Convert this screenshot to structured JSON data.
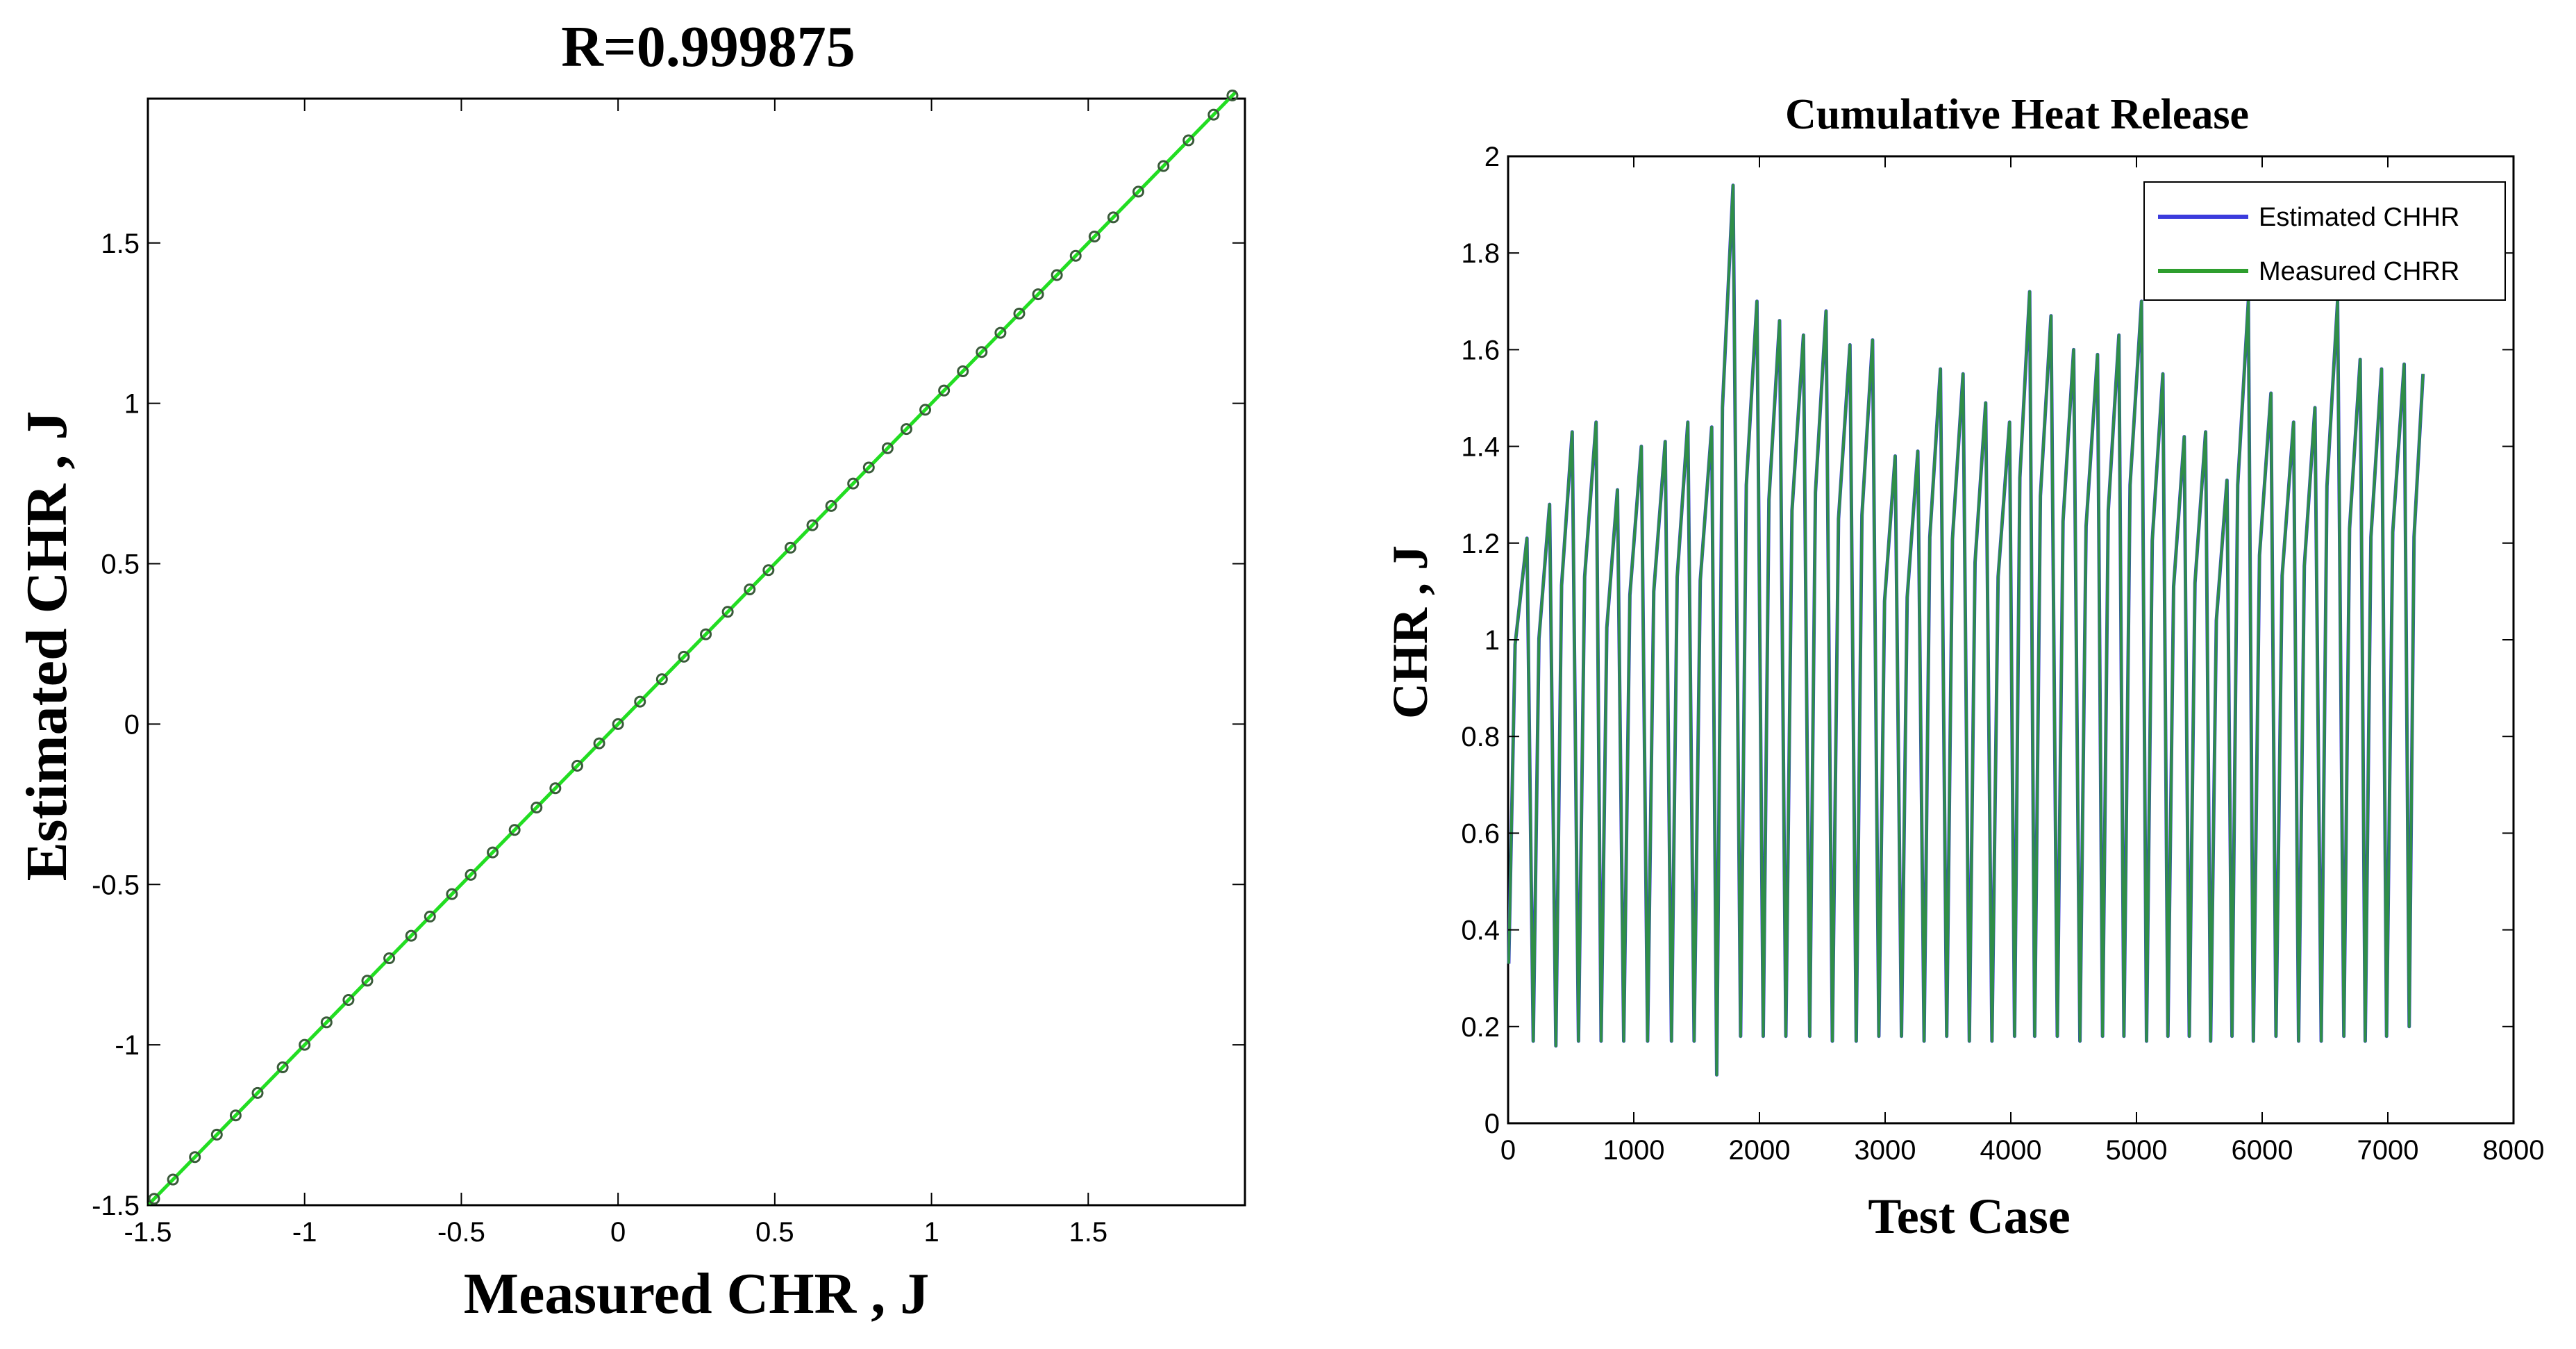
{
  "chart_data": [
    {
      "type": "scatter",
      "title": "R=0.999875",
      "xlabel": "Measured CHR , J",
      "ylabel": "Estimated CHR , J",
      "xlim": [
        -1.5,
        2
      ],
      "ylim": [
        -1.5,
        1.95
      ],
      "xticks": [
        -1.5,
        -1,
        -0.5,
        0,
        0.5,
        1,
        1.5
      ],
      "yticks": [
        -1.5,
        -1,
        -0.5,
        0,
        0.5,
        1,
        1.5
      ],
      "xtick_labels": [
        "-1.5",
        "-1",
        "-0.5",
        "0",
        "0.5",
        "1",
        "1.5"
      ],
      "ytick_labels": [
        "-1.5",
        "-1",
        "-0.5",
        "0",
        "0.5",
        "1",
        "1.5"
      ],
      "grid": false,
      "fit_line": {
        "x": [
          -1.5,
          1.97
        ],
        "y": [
          -1.5,
          1.97
        ],
        "color": "#22dd22"
      },
      "points_color": "#3a5a3a",
      "points": [
        [
          -1.48,
          -1.48
        ],
        [
          -1.42,
          -1.42
        ],
        [
          -1.35,
          -1.35
        ],
        [
          -1.28,
          -1.28
        ],
        [
          -1.22,
          -1.22
        ],
        [
          -1.15,
          -1.15
        ],
        [
          -1.07,
          -1.07
        ],
        [
          -1.0,
          -1.0
        ],
        [
          -0.93,
          -0.93
        ],
        [
          -0.86,
          -0.86
        ],
        [
          -0.8,
          -0.8
        ],
        [
          -0.73,
          -0.73
        ],
        [
          -0.66,
          -0.66
        ],
        [
          -0.6,
          -0.6
        ],
        [
          -0.53,
          -0.53
        ],
        [
          -0.47,
          -0.47
        ],
        [
          -0.4,
          -0.4
        ],
        [
          -0.33,
          -0.33
        ],
        [
          -0.26,
          -0.26
        ],
        [
          -0.2,
          -0.2
        ],
        [
          -0.13,
          -0.13
        ],
        [
          -0.06,
          -0.06
        ],
        [
          0.0,
          0.0
        ],
        [
          0.07,
          0.07
        ],
        [
          0.14,
          0.14
        ],
        [
          0.21,
          0.21
        ],
        [
          0.28,
          0.28
        ],
        [
          0.35,
          0.35
        ],
        [
          0.42,
          0.42
        ],
        [
          0.48,
          0.48
        ],
        [
          0.55,
          0.55
        ],
        [
          0.62,
          0.62
        ],
        [
          0.68,
          0.68
        ],
        [
          0.75,
          0.75
        ],
        [
          0.8,
          0.8
        ],
        [
          0.86,
          0.86
        ],
        [
          0.92,
          0.92
        ],
        [
          0.98,
          0.98
        ],
        [
          1.04,
          1.04
        ],
        [
          1.1,
          1.1
        ],
        [
          1.16,
          1.16
        ],
        [
          1.22,
          1.22
        ],
        [
          1.28,
          1.28
        ],
        [
          1.34,
          1.34
        ],
        [
          1.4,
          1.4
        ],
        [
          1.46,
          1.46
        ],
        [
          1.52,
          1.52
        ],
        [
          1.58,
          1.58
        ],
        [
          1.66,
          1.66
        ],
        [
          1.74,
          1.74
        ],
        [
          1.82,
          1.82
        ],
        [
          1.9,
          1.9
        ],
        [
          1.96,
          1.96
        ]
      ]
    },
    {
      "type": "line",
      "title": "Cumulative Heat Release",
      "xlabel": "Test Case",
      "ylabel": "CHR , J",
      "xlim": [
        0,
        8000
      ],
      "ylim": [
        0,
        2
      ],
      "xticks": [
        0,
        1000,
        2000,
        3000,
        4000,
        5000,
        6000,
        7000,
        8000
      ],
      "yticks": [
        0,
        0.2,
        0.4,
        0.6,
        0.8,
        1,
        1.2,
        1.4,
        1.6,
        1.8,
        2
      ],
      "xtick_labels": [
        "0",
        "1000",
        "2000",
        "3000",
        "4000",
        "5000",
        "6000",
        "7000",
        "8000"
      ],
      "ytick_labels": [
        "0",
        "0.2",
        "0.4",
        "0.6",
        "0.8",
        "1",
        "1.2",
        "1.4",
        "1.6",
        "1.8",
        "2"
      ],
      "grid": false,
      "legend": "top-right",
      "series": [
        {
          "name": "Estimated CHHR",
          "color": "#3b3bdc",
          "cycles": [
            [
              5,
              0.33,
              150,
              1.21
            ],
            [
              200,
              0.17,
              330,
              1.28
            ],
            [
              380,
              0.16,
              510,
              1.43
            ],
            [
              560,
              0.17,
              700,
              1.45
            ],
            [
              740,
              0.17,
              870,
              1.31
            ],
            [
              920,
              0.17,
              1060,
              1.4
            ],
            [
              1110,
              0.17,
              1250,
              1.41
            ],
            [
              1300,
              0.17,
              1430,
              1.45
            ],
            [
              1480,
              0.17,
              1620,
              1.44
            ],
            [
              1660,
              0.1,
              1790,
              1.94
            ],
            [
              1850,
              0.18,
              1980,
              1.7
            ],
            [
              2030,
              0.18,
              2160,
              1.66
            ],
            [
              2210,
              0.18,
              2350,
              1.63
            ],
            [
              2400,
              0.18,
              2530,
              1.68
            ],
            [
              2580,
              0.17,
              2720,
              1.61
            ],
            [
              2770,
              0.17,
              2900,
              1.62
            ],
            [
              2950,
              0.18,
              3080,
              1.38
            ],
            [
              3130,
              0.18,
              3260,
              1.39
            ],
            [
              3310,
              0.17,
              3440,
              1.56
            ],
            [
              3490,
              0.18,
              3620,
              1.55
            ],
            [
              3670,
              0.17,
              3800,
              1.49
            ],
            [
              3850,
              0.17,
              3990,
              1.45
            ],
            [
              4030,
              0.18,
              4150,
              1.72
            ],
            [
              4190,
              0.18,
              4320,
              1.67
            ],
            [
              4370,
              0.18,
              4500,
              1.6
            ],
            [
              4550,
              0.17,
              4690,
              1.59
            ],
            [
              4730,
              0.18,
              4860,
              1.63
            ],
            [
              4900,
              0.18,
              5040,
              1.7
            ],
            [
              5080,
              0.17,
              5210,
              1.55
            ],
            [
              5250,
              0.18,
              5380,
              1.42
            ],
            [
              5420,
              0.18,
              5550,
              1.43
            ],
            [
              5590,
              0.17,
              5720,
              1.33
            ],
            [
              5760,
              0.18,
              5890,
              1.7
            ],
            [
              5930,
              0.17,
              6070,
              1.51
            ],
            [
              6110,
              0.18,
              6250,
              1.45
            ],
            [
              6290,
              0.17,
              6420,
              1.48
            ],
            [
              6470,
              0.17,
              6600,
              1.7
            ],
            [
              6650,
              0.18,
              6780,
              1.58
            ],
            [
              6820,
              0.17,
              6950,
              1.56
            ],
            [
              6990,
              0.18,
              7130,
              1.57
            ],
            [
              7170,
              0.2,
              7280,
              1.55
            ]
          ]
        },
        {
          "name": "Measured CHRR",
          "color": "#2e9e2e",
          "cycles": [
            [
              5,
              0.33,
              150,
              1.21
            ],
            [
              200,
              0.17,
              330,
              1.28
            ],
            [
              380,
              0.16,
              510,
              1.43
            ],
            [
              560,
              0.17,
              700,
              1.45
            ],
            [
              740,
              0.17,
              870,
              1.31
            ],
            [
              920,
              0.17,
              1060,
              1.4
            ],
            [
              1110,
              0.17,
              1250,
              1.41
            ],
            [
              1300,
              0.17,
              1430,
              1.45
            ],
            [
              1480,
              0.17,
              1620,
              1.44
            ],
            [
              1660,
              0.1,
              1790,
              1.94
            ],
            [
              1850,
              0.18,
              1980,
              1.7
            ],
            [
              2030,
              0.18,
              2160,
              1.66
            ],
            [
              2210,
              0.18,
              2350,
              1.63
            ],
            [
              2400,
              0.18,
              2530,
              1.68
            ],
            [
              2580,
              0.17,
              2720,
              1.61
            ],
            [
              2770,
              0.17,
              2900,
              1.62
            ],
            [
              2950,
              0.18,
              3080,
              1.38
            ],
            [
              3130,
              0.18,
              3260,
              1.39
            ],
            [
              3310,
              0.17,
              3440,
              1.56
            ],
            [
              3490,
              0.18,
              3620,
              1.55
            ],
            [
              3670,
              0.17,
              3800,
              1.49
            ],
            [
              3850,
              0.17,
              3990,
              1.45
            ],
            [
              4030,
              0.18,
              4150,
              1.72
            ],
            [
              4190,
              0.18,
              4320,
              1.67
            ],
            [
              4370,
              0.18,
              4500,
              1.6
            ],
            [
              4550,
              0.17,
              4690,
              1.59
            ],
            [
              4730,
              0.18,
              4860,
              1.63
            ],
            [
              4900,
              0.18,
              5040,
              1.7
            ],
            [
              5080,
              0.17,
              5210,
              1.55
            ],
            [
              5250,
              0.18,
              5380,
              1.42
            ],
            [
              5420,
              0.18,
              5550,
              1.43
            ],
            [
              5590,
              0.17,
              5720,
              1.33
            ],
            [
              5760,
              0.18,
              5890,
              1.7
            ],
            [
              5930,
              0.17,
              6070,
              1.51
            ],
            [
              6110,
              0.18,
              6250,
              1.45
            ],
            [
              6290,
              0.17,
              6420,
              1.48
            ],
            [
              6470,
              0.17,
              6600,
              1.7
            ],
            [
              6650,
              0.18,
              6780,
              1.58
            ],
            [
              6820,
              0.17,
              6950,
              1.56
            ],
            [
              6990,
              0.18,
              7130,
              1.57
            ],
            [
              7170,
              0.2,
              7280,
              1.55
            ]
          ]
        }
      ]
    }
  ]
}
